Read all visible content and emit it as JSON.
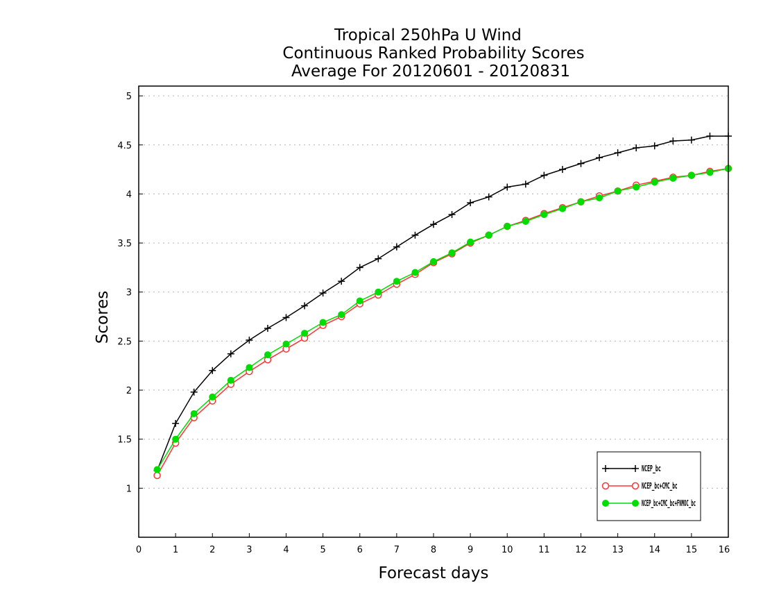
{
  "chart_data": {
    "type": "line",
    "title": [
      "Tropical 250hPa U Wind",
      "Continuous Ranked Probability Scores",
      "Average For 20120601 - 20120831"
    ],
    "xlabel": "Forecast days",
    "ylabel": "Scores",
    "xlim": [
      0,
      16
    ],
    "ylim": [
      0.5,
      5.1
    ],
    "x_ticks": [
      "0",
      "1",
      "2",
      "3",
      "4",
      "5",
      "6",
      "7",
      "8",
      "9",
      "10",
      "11",
      "12",
      "13",
      "14",
      "15",
      "16"
    ],
    "y_ticks": [
      "1",
      "1.5",
      "2",
      "2.5",
      "3",
      "3.5",
      "4",
      "4.5",
      "5"
    ],
    "grid": "horizontal-dotted",
    "legend_position": "bottom-right",
    "x": [
      0.5,
      1,
      1.5,
      2,
      2.5,
      3,
      3.5,
      4,
      4.5,
      5,
      5.5,
      6,
      6.5,
      7,
      7.5,
      8,
      8.5,
      9,
      9.5,
      10,
      10.5,
      11,
      11.5,
      12,
      12.5,
      13,
      13.5,
      14,
      14.5,
      15,
      15.5,
      16
    ],
    "series": [
      {
        "name": "NCEP_bc",
        "color": "#000000",
        "marker": "plus",
        "values": [
          1.18,
          1.66,
          1.98,
          2.2,
          2.37,
          2.51,
          2.63,
          2.74,
          2.86,
          2.99,
          3.11,
          3.25,
          3.34,
          3.46,
          3.58,
          3.69,
          3.79,
          3.91,
          3.97,
          4.07,
          4.1,
          4.19,
          4.25,
          4.31,
          4.37,
          4.42,
          4.47,
          4.49,
          4.54,
          4.55,
          4.59,
          4.59
        ]
      },
      {
        "name": "NCEP_bc+CMC_bc",
        "color": "#ff3333",
        "marker": "open-circle",
        "values": [
          1.13,
          1.46,
          1.72,
          1.89,
          2.06,
          2.19,
          2.31,
          2.42,
          2.53,
          2.66,
          2.75,
          2.88,
          2.97,
          3.08,
          3.18,
          3.3,
          3.39,
          3.5,
          3.58,
          3.67,
          3.73,
          3.8,
          3.86,
          3.92,
          3.98,
          4.03,
          4.09,
          4.13,
          4.17,
          4.19,
          4.23,
          4.26
        ]
      },
      {
        "name": "NCEP_bc+CMC_bc+FNMOC_bc",
        "color": "#00dd00",
        "marker": "filled-circle",
        "values": [
          1.19,
          1.5,
          1.76,
          1.93,
          2.1,
          2.23,
          2.36,
          2.47,
          2.58,
          2.69,
          2.77,
          2.91,
          3.0,
          3.11,
          3.2,
          3.31,
          3.4,
          3.51,
          3.58,
          3.67,
          3.72,
          3.79,
          3.85,
          3.92,
          3.96,
          4.03,
          4.07,
          4.12,
          4.16,
          4.19,
          4.22,
          4.26
        ]
      }
    ]
  }
}
